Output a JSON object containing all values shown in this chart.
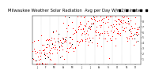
{
  "title": "Milwaukee Weather Solar Radiation  Avg per Day W/m2/minute",
  "title_fontsize": 3.8,
  "background_color": "#ffffff",
  "plot_bg_color": "#ffffff",
  "scatter_color_red": "#ff0000",
  "scatter_color_black": "#000000",
  "legend_box_color": "#cc0000",
  "ylim": [
    0,
    9
  ],
  "xlim": [
    0,
    370
  ],
  "grid_color": "#bbbbbb",
  "grid_style": "--",
  "seed": 42,
  "n_points": 365,
  "month_starts": [
    0,
    31,
    59,
    90,
    120,
    151,
    181,
    212,
    243,
    273,
    304,
    334
  ],
  "month_mids": [
    15,
    46,
    74,
    105,
    135,
    166,
    196,
    227,
    258,
    288,
    319,
    349
  ],
  "month_labels": [
    "J",
    "F",
    "M",
    "A",
    "M",
    "J",
    "J",
    "A",
    "S",
    "O",
    "N",
    "D"
  ],
  "yticks": [
    1,
    2,
    3,
    4,
    5,
    6,
    7,
    8
  ],
  "ytick_labels": [
    "1",
    "2",
    "3",
    "4",
    "5",
    "6",
    "7",
    "8"
  ]
}
